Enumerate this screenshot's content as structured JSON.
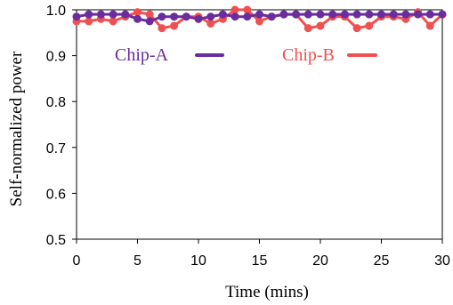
{
  "chart_data": {
    "type": "line",
    "title": "",
    "xlabel": "Time (mins)",
    "ylabel": "Self-normalized power",
    "xlim": [
      0,
      30
    ],
    "ylim": [
      0.5,
      1.0
    ],
    "xticks": [
      "0",
      "5",
      "10",
      "15",
      "20",
      "25",
      "30"
    ],
    "yticks": [
      "0.5",
      "0.6",
      "0.7",
      "0.8",
      "0.9",
      "1.0"
    ],
    "grid": false,
    "legend": "inside-top",
    "x": [
      0,
      1,
      2,
      3,
      4,
      5,
      6,
      7,
      8,
      9,
      10,
      11,
      12,
      13,
      14,
      15,
      16,
      17,
      18,
      19,
      20,
      21,
      22,
      23,
      24,
      25,
      26,
      27,
      28,
      29,
      30
    ],
    "series": [
      {
        "name": "Chip-A",
        "color": "#6a2c9e",
        "values": [
          0.985,
          0.99,
          0.99,
          0.99,
          0.99,
          0.98,
          0.975,
          0.985,
          0.985,
          0.985,
          0.98,
          0.985,
          0.99,
          0.985,
          0.985,
          0.99,
          0.985,
          0.99,
          0.99,
          0.99,
          0.99,
          0.99,
          0.99,
          0.99,
          0.99,
          0.99,
          0.99,
          0.99,
          0.99,
          0.99,
          0.99
        ]
      },
      {
        "name": "Chip-B",
        "color": "#f0504f",
        "values": [
          0.975,
          0.975,
          0.98,
          0.975,
          0.985,
          0.995,
          0.99,
          0.96,
          0.965,
          0.985,
          0.985,
          0.97,
          0.98,
          1.0,
          1.0,
          0.975,
          0.985,
          0.99,
          0.99,
          0.96,
          0.965,
          0.985,
          0.985,
          0.96,
          0.965,
          0.985,
          0.985,
          0.98,
          0.995,
          0.965,
          0.99
        ]
      }
    ]
  }
}
